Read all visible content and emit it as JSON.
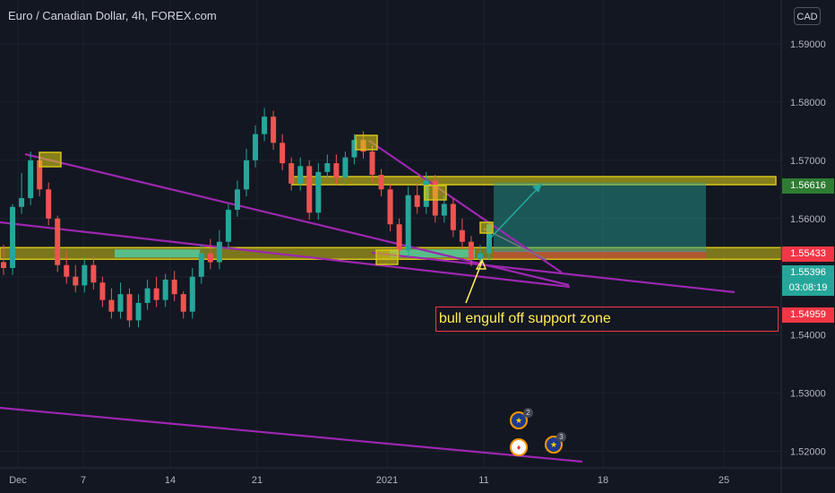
{
  "header": {
    "title": "Euro / Canadian Dollar, 4h, FOREX.com",
    "currency_button": "CAD"
  },
  "annotation": {
    "text": "bull engulf off support zone"
  },
  "price_tags": [
    {
      "label": "1.56616",
      "value": 1.56616,
      "bg": "#2e7d32",
      "fg": "#ffffff"
    },
    {
      "label": "1.55433",
      "value": 1.55433,
      "bg": "#f23645",
      "fg": "#ffffff"
    },
    {
      "label": "1.55396",
      "value": 1.55396,
      "bg": "#26a69a",
      "fg": "#ffffff"
    },
    {
      "label": "03:08:19",
      "value": 1.5521,
      "bg": "#26a69a",
      "fg": "#ffffff"
    },
    {
      "label": "1.54959",
      "value": 1.54959,
      "bg": "#f23645",
      "fg": "#ffffff"
    }
  ],
  "events": [
    {
      "count": "2",
      "kind": "EU"
    },
    {
      "count": "",
      "kind": "CA"
    },
    {
      "count": "3",
      "kind": "EU"
    }
  ],
  "colors": {
    "up": "#26a69a",
    "down": "#ef5350",
    "trendline": "#9c27b0",
    "zone": "#d4c418",
    "target": "#26a69a",
    "stop": "#f23645"
  },
  "chart_data": {
    "type": "candlestick",
    "symbol": "EURCAD",
    "timeframe": "4h",
    "ylim": [
      1.519,
      1.596
    ],
    "y_ticks": [
      "1.59000",
      "1.58000",
      "1.57000",
      "1.56000",
      "1.55000",
      "1.54000",
      "1.53000",
      "1.52000"
    ],
    "y_tick_values": [
      1.59,
      1.58,
      1.57,
      1.56,
      1.55,
      1.54,
      1.53,
      1.52
    ],
    "x_ticks": [
      "Dec",
      "7",
      "14",
      "21",
      "2021",
      "11",
      "18",
      "25"
    ],
    "price_path": [
      [
        1.5525,
        1.5515,
        1.5555
      ],
      [
        1.5505,
        1.562,
        1.5625
      ],
      [
        1.561,
        1.5635,
        1.5678
      ],
      [
        1.5635,
        1.57,
        1.5715
      ],
      [
        1.569,
        1.565,
        1.5712
      ],
      [
        1.5655,
        1.56,
        1.5662
      ],
      [
        1.5595,
        1.552,
        1.5605
      ],
      [
        1.552,
        1.55,
        1.5545
      ],
      [
        1.55,
        1.5485,
        1.552
      ],
      [
        1.5485,
        1.552,
        1.553
      ],
      [
        1.552,
        1.549,
        1.5535
      ],
      [
        1.549,
        1.546,
        1.55
      ],
      [
        1.546,
        1.544,
        1.548
      ],
      [
        1.544,
        1.547,
        1.549
      ],
      [
        1.547,
        1.5425,
        1.548
      ],
      [
        1.5425,
        1.5455,
        1.547
      ],
      [
        1.5455,
        1.548,
        1.5495
      ],
      [
        1.548,
        1.546,
        1.55
      ],
      [
        1.546,
        1.5495,
        1.5505
      ],
      [
        1.5495,
        1.547,
        1.551
      ],
      [
        1.547,
        1.544,
        1.5475
      ],
      [
        1.544,
        1.55,
        1.5515
      ],
      [
        1.55,
        1.554,
        1.5555
      ],
      [
        1.554,
        1.5525,
        1.5565
      ],
      [
        1.5525,
        1.556,
        1.558
      ],
      [
        1.556,
        1.5615,
        1.5625
      ],
      [
        1.5615,
        1.565,
        1.5665
      ],
      [
        1.565,
        1.57,
        1.572
      ],
      [
        1.57,
        1.5745,
        1.576
      ],
      [
        1.5745,
        1.5775,
        1.579
      ],
      [
        1.5775,
        1.573,
        1.5785
      ],
      [
        1.573,
        1.5695,
        1.5745
      ],
      [
        1.5695,
        1.566,
        1.5705
      ],
      [
        1.566,
        1.569,
        1.5705
      ],
      [
        1.569,
        1.561,
        1.57
      ],
      [
        1.561,
        1.568,
        1.5695
      ],
      [
        1.568,
        1.5695,
        1.571
      ],
      [
        1.5695,
        1.567,
        1.571
      ],
      [
        1.567,
        1.5705,
        1.5715
      ],
      [
        1.5705,
        1.5735,
        1.5745
      ],
      [
        1.5735,
        1.5715,
        1.575
      ],
      [
        1.5715,
        1.5675,
        1.5725
      ],
      [
        1.5675,
        1.565,
        1.5685
      ],
      [
        1.565,
        1.559,
        1.566
      ],
      [
        1.559,
        1.5545,
        1.56
      ],
      [
        1.5545,
        1.564,
        1.5655
      ],
      [
        1.564,
        1.562,
        1.566
      ],
      [
        1.562,
        1.5665,
        1.568
      ],
      [
        1.5665,
        1.5605,
        1.5675
      ],
      [
        1.5605,
        1.5625,
        1.564
      ],
      [
        1.5625,
        1.558,
        1.5635
      ],
      [
        1.558,
        1.556,
        1.56
      ],
      [
        1.556,
        1.553,
        1.557
      ],
      [
        1.553,
        1.554,
        1.5555
      ],
      [
        1.554,
        1.559,
        1.5595
      ]
    ],
    "support_zone": [
      1.553,
      1.555
    ],
    "resistance_zone": [
      1.5658,
      1.5672
    ],
    "long_position": {
      "entry": 1.55433,
      "target": 1.56616,
      "stop": 1.54959
    },
    "last_price": 1.55396
  }
}
